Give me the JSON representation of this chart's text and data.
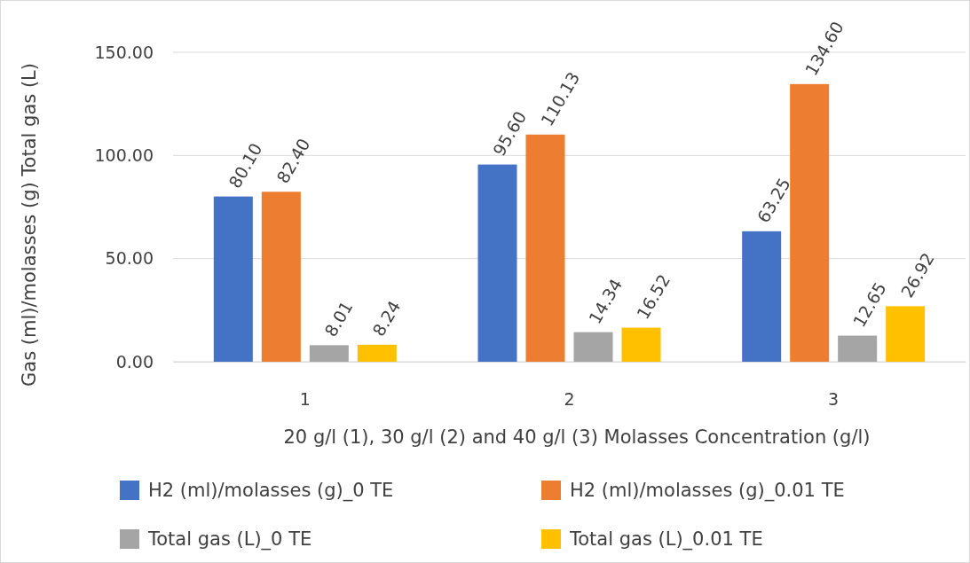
{
  "chart_data": {
    "type": "bar",
    "xlabel": "20 g/l (1), 30 g/l (2) and 40 g/l (3) Molasses Concentration (g/l)",
    "ylabel": "Gas (ml)/molasses (g) Total  gas (L)",
    "categories": [
      "1",
      "2",
      "3"
    ],
    "series": [
      {
        "name": "H2 (ml)/molasses (g)_0 TE",
        "color": "#4472c4",
        "values": [
          80.1,
          95.6,
          63.25
        ],
        "value_labels": [
          "80.10",
          "95.60",
          "63.25"
        ]
      },
      {
        "name": "H2 (ml)/molasses (g)_0.01 TE",
        "color": "#ed7d31",
        "values": [
          82.4,
          110.13,
          134.6
        ],
        "value_labels": [
          "82.40",
          "110.13",
          "134.60"
        ]
      },
      {
        "name": "Total gas (L)_0 TE",
        "color": "#a5a5a5",
        "values": [
          8.01,
          14.34,
          12.65
        ],
        "value_labels": [
          "8.01",
          "14.34",
          "12.65"
        ]
      },
      {
        "name": "Total gas (L)_0.01 TE",
        "color": "#ffc000",
        "values": [
          8.24,
          16.52,
          26.92
        ],
        "value_labels": [
          "8.24",
          "16.52",
          "26.92"
        ]
      }
    ],
    "ylim": [
      0,
      150
    ],
    "yticks": [
      {
        "value": 0,
        "label": "0.00"
      },
      {
        "value": 50,
        "label": "50.00"
      },
      {
        "value": 100,
        "label": "100.00"
      },
      {
        "value": 150,
        "label": "150.00"
      }
    ],
    "grid": "y",
    "legend": "bottom"
  }
}
